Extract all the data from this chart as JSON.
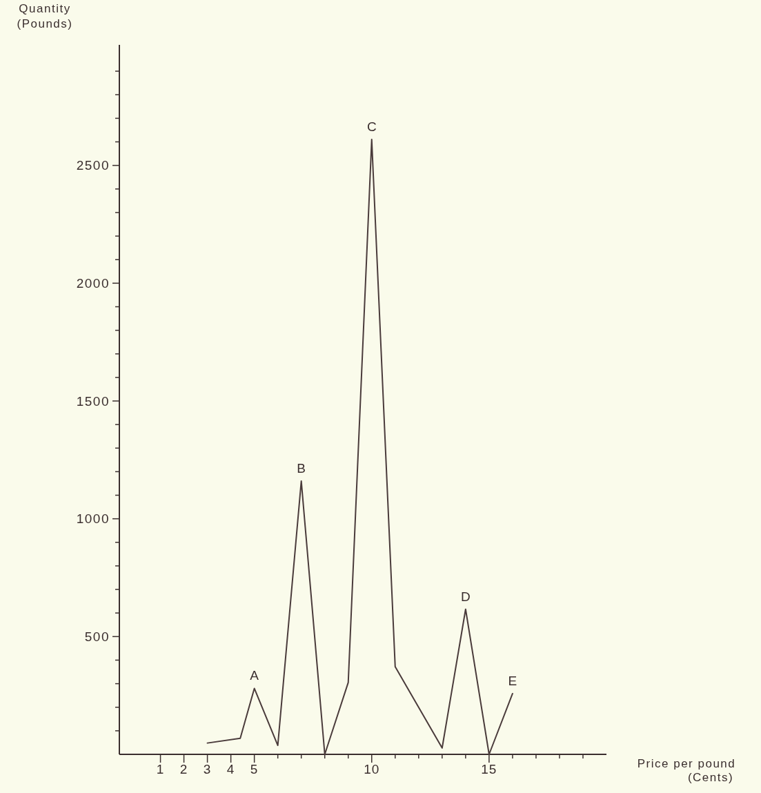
{
  "chart_data": {
    "type": "line",
    "xlabel": "Price per pound\n(Cents)",
    "ylabel": "Quantity\n(Pounds)",
    "x": [
      3,
      4.4,
      5,
      6,
      7,
      8,
      9,
      10,
      11,
      13,
      14,
      15,
      16
    ],
    "values": [
      48,
      68,
      280,
      38,
      1160,
      0,
      305,
      2610,
      372,
      27,
      616,
      0,
      258
    ],
    "color": "#4a3b3b",
    "marker": "none",
    "line_style": "solid",
    "grid": false,
    "xlim": [
      -0.75,
      20
    ],
    "xticks": [
      1,
      2,
      3,
      4,
      5,
      {
        "value": 6,
        "label": null
      },
      {
        "value": 7,
        "label": null
      },
      {
        "value": 8,
        "label": null
      },
      {
        "value": 9,
        "label": null
      },
      10,
      {
        "value": 11,
        "label": null
      },
      {
        "value": 12,
        "label": null
      },
      {
        "value": 13,
        "label": null
      },
      {
        "value": 14,
        "label": null
      },
      15,
      {
        "value": 16,
        "label": null
      },
      {
        "value": 17,
        "label": null
      },
      {
        "value": 18,
        "label": null
      },
      {
        "value": 19,
        "label": null
      }
    ],
    "ylim": [
      0,
      3000
    ],
    "yticks": [
      {
        "value": 100,
        "label": null
      },
      {
        "value": 200,
        "label": null
      },
      {
        "value": 300,
        "label": null
      },
      {
        "value": 400,
        "label": null
      },
      500,
      {
        "value": 600,
        "label": null
      },
      {
        "value": 700,
        "label": null
      },
      {
        "value": 800,
        "label": null
      },
      {
        "value": 900,
        "label": null
      },
      1000,
      {
        "value": 1100,
        "label": null
      },
      {
        "value": 1200,
        "label": null
      },
      {
        "value": 1300,
        "label": null
      },
      {
        "value": 1400,
        "label": null
      },
      1500,
      {
        "value": 1600,
        "label": null
      },
      {
        "value": 1700,
        "label": null
      },
      {
        "value": 1800,
        "label": null
      },
      {
        "value": 1900,
        "label": null
      },
      2000,
      {
        "value": 2100,
        "label": null
      },
      {
        "value": 2200,
        "label": null
      },
      {
        "value": 2300,
        "label": null
      },
      {
        "value": 2400,
        "label": null
      },
      2500,
      {
        "value": 2600,
        "label": null
      },
      {
        "value": 2700,
        "label": null
      },
      {
        "value": 2800,
        "label": null
      },
      {
        "value": 2900,
        "label": null
      }
    ],
    "annotations": [
      {
        "text": "A",
        "x": 5,
        "y": 280
      },
      {
        "text": "B",
        "x": 7,
        "y": 1160
      },
      {
        "text": "C",
        "x": 10,
        "y": 2610
      },
      {
        "text": "D",
        "x": 14,
        "y": 616
      },
      {
        "text": "E",
        "x": 16,
        "y": 258
      }
    ]
  }
}
